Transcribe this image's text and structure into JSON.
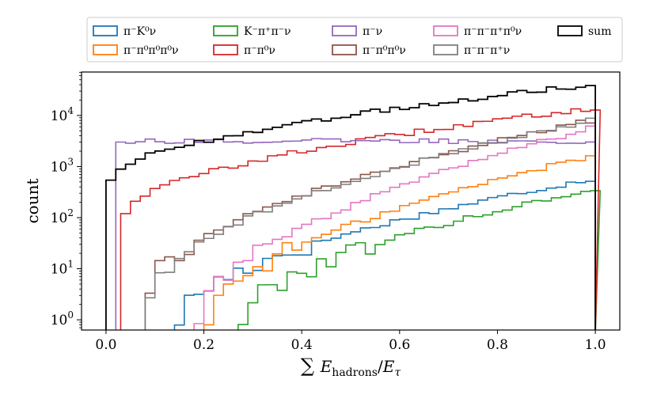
{
  "chart_data": {
    "type": "histogram",
    "xlabel": "∑ E_hadrons / E_τ",
    "ylabel": "count",
    "xlim": [
      -0.05,
      1.05
    ],
    "ylim_log10": [
      -0.2,
      4.85
    ],
    "yscale": "log",
    "x_ticks": [
      0.0,
      0.2,
      0.4,
      0.6,
      0.8,
      1.0
    ],
    "x_tick_labels": [
      "0.0",
      "0.2",
      "0.4",
      "0.6",
      "0.8",
      "1.0"
    ],
    "y_ticks_log10": [
      0,
      1,
      2,
      3,
      4
    ],
    "y_tick_bases": [
      "10",
      "10",
      "10",
      "10",
      "10"
    ],
    "y_tick_exponents": [
      "0",
      "1",
      "2",
      "3",
      "4"
    ],
    "bin_width": 0.02,
    "legend_location": "top (outside plot, 5 columns)",
    "series": [
      {
        "name": "π⁻K⁰ν",
        "color": "#1f77b4",
        "x_start": 0.14,
        "x_end": 1.0,
        "log10_at_start": 0.0,
        "log10_at_end": 2.75
      },
      {
        "name": "π⁻π⁰π⁰π⁰ν",
        "color": "#ff7f0e",
        "x_start": 0.2,
        "x_end": 1.0,
        "log10_at_start": 0.0,
        "log10_at_end": 3.2
      },
      {
        "name": "K⁻π⁺π⁻ν",
        "color": "#2ca02c",
        "x_start": 0.27,
        "x_end": 1.0,
        "log10_at_start": 0.0,
        "log10_at_end": 2.55
      },
      {
        "name": "π⁻π⁰ν",
        "color": "#d62728",
        "x_start": 0.03,
        "x_end": 1.0,
        "log10_at_start": 2.1,
        "log10_at_end": 4.15
      },
      {
        "name": "π⁻ν",
        "color": "#9467bd",
        "x_start": 0.02,
        "x_end": 1.0,
        "log10_at_start": 3.5,
        "log10_at_end": 3.5
      },
      {
        "name": "π⁻π⁰π⁰ν",
        "color": "#8c564b",
        "x_start": 0.08,
        "x_end": 1.0,
        "log10_at_start": 0.6,
        "log10_at_end": 3.9
      },
      {
        "name": "π⁻π⁻π⁺π⁰ν",
        "color": "#e377c2",
        "x_start": 0.18,
        "x_end": 1.0,
        "log10_at_start": 0.0,
        "log10_at_end": 3.75
      },
      {
        "name": "π⁻π⁻π⁺ν",
        "color": "#7f7f7f",
        "x_start": 0.08,
        "x_end": 1.0,
        "log10_at_start": 0.5,
        "log10_at_end": 3.9
      },
      {
        "name": "sum",
        "color": "#000000",
        "x_start": 0.0,
        "x_end": 1.0,
        "log10_at_start": 2.75,
        "log10_at_end": 4.6
      }
    ]
  }
}
